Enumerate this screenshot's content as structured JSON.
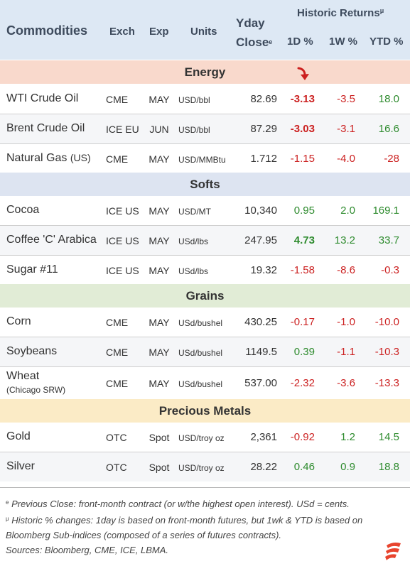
{
  "header": {
    "commodities": "Commodities",
    "exch": "Exch",
    "exp": "Exp",
    "units": "Units",
    "yday_line1": "Yday",
    "yday_line2": "Close",
    "yday_mark": "e",
    "historic": "Historic Returns",
    "historic_mark": "μ",
    "d1": "1D %",
    "w1": "1W %",
    "ytd": "YTD %"
  },
  "sections": {
    "energy": "Energy",
    "softs": "Softs",
    "grains": "Grains",
    "metals": "Precious Metals"
  },
  "icons": {
    "arrow": "down-right-arrow-icon",
    "logo": "brand-logo-icon"
  },
  "colors": {
    "positive": "#2e8b2e",
    "negative": "#cc2222",
    "energy_band": "#f9d9cc",
    "softs_band": "#dde4f1",
    "grains_band": "#e1ecd6",
    "metals_band": "#fbebc6",
    "header_band": "#dde8f4"
  },
  "rows": {
    "wti": {
      "name": "WTI Crude Oil",
      "exch": "CME",
      "exp": "MAY",
      "units": "USD/bbl",
      "close": "82.69",
      "d1": "-3.13",
      "w1": "-3.5",
      "ytd": "18.0"
    },
    "brent": {
      "name": "Brent Crude Oil",
      "exch": "ICE EU",
      "exp": "JUN",
      "units": "USD/bbl",
      "close": "87.29",
      "d1": "-3.03",
      "w1": "-3.1",
      "ytd": "16.6"
    },
    "natgas": {
      "name": "Natural Gas",
      "name_sub": "(US)",
      "exch": "CME",
      "exp": "MAY",
      "units": "USD/MMBtu",
      "close": "1.712",
      "d1": "-1.15",
      "w1": "-4.0",
      "ytd": "-28"
    },
    "cocoa": {
      "name": "Cocoa",
      "exch": "ICE US",
      "exp": "MAY",
      "units": "USD/MT",
      "close": "10,340",
      "d1": "0.95",
      "w1": "2.0",
      "ytd": "169.1"
    },
    "coffee": {
      "name": "Coffee 'C' Arabica",
      "exch": "ICE US",
      "exp": "MAY",
      "units": "USd/lbs",
      "close": "247.95",
      "d1": "4.73",
      "w1": "13.2",
      "ytd": "33.7"
    },
    "sugar": {
      "name": "Sugar #11",
      "exch": "ICE US",
      "exp": "MAY",
      "units": "USd/lbs",
      "close": "19.32",
      "d1": "-1.58",
      "w1": "-8.6",
      "ytd": "-0.3"
    },
    "corn": {
      "name": "Corn",
      "exch": "CME",
      "exp": "MAY",
      "units": "USd/bushel",
      "close": "430.25",
      "d1": "-0.17",
      "w1": "-1.0",
      "ytd": "-10.0"
    },
    "soybeans": {
      "name": "Soybeans",
      "exch": "CME",
      "exp": "MAY",
      "units": "USd/bushel",
      "close": "1149.5",
      "d1": "0.39",
      "w1": "-1.1",
      "ytd": "-10.3"
    },
    "wheat": {
      "name": "Wheat",
      "name_sub": "(Chicago SRW)",
      "exch": "CME",
      "exp": "MAY",
      "units": "USd/bushel",
      "close": "537.00",
      "d1": "-2.32",
      "w1": "-3.6",
      "ytd": "-13.3"
    },
    "gold": {
      "name": "Gold",
      "exch": "OTC",
      "exp": "Spot",
      "units": "USD/troy oz",
      "close": "2,361",
      "d1": "-0.92",
      "w1": "1.2",
      "ytd": "14.5"
    },
    "silver": {
      "name": "Silver",
      "exch": "OTC",
      "exp": "Spot",
      "units": "USD/troy oz",
      "close": "28.22",
      "d1": "0.46",
      "w1": "0.9",
      "ytd": "18.8"
    }
  },
  "notes": {
    "mark_e": "e",
    "note1": "Previous Close: front-month contract (or w/the highest open interest). USd = cents.",
    "mark_mu": "μ",
    "note2": "Historic % changes: 1day is based on front-month futures, but 1wk & YTD is based on Bloomberg Sub-indices (composed of a series of futures contracts).",
    "sources": "Sources: Bloomberg, CME, ICE, LBMA."
  }
}
